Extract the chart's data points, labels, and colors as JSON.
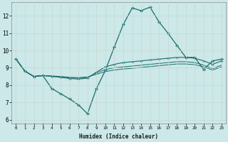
{
  "xlabel": "Humidex (Indice chaleur)",
  "background_color": "#cce8e8",
  "grid_color": "#aacccc",
  "line_color": "#1a6e6a",
  "xlim": [
    -0.5,
    23.5
  ],
  "ylim": [
    5.8,
    12.8
  ],
  "xticks": [
    0,
    1,
    2,
    3,
    4,
    5,
    6,
    7,
    8,
    9,
    10,
    11,
    12,
    13,
    14,
    15,
    16,
    17,
    18,
    19,
    20,
    21,
    22,
    23
  ],
  "yticks": [
    6,
    7,
    8,
    9,
    10,
    11,
    12
  ],
  "line1_y": [
    9.5,
    8.8,
    8.5,
    8.55,
    7.8,
    7.5,
    7.2,
    6.85,
    6.35,
    7.8,
    8.85,
    10.2,
    11.5,
    12.45,
    12.3,
    12.5,
    11.65,
    11.0,
    10.3,
    9.6,
    9.6,
    8.9,
    9.4,
    9.5
  ],
  "line2_y": [
    9.5,
    8.8,
    8.5,
    8.55,
    8.5,
    8.45,
    8.38,
    8.35,
    8.4,
    8.75,
    9.05,
    9.2,
    9.3,
    9.35,
    9.4,
    9.45,
    9.5,
    9.55,
    9.6,
    9.6,
    9.55,
    9.4,
    9.2,
    9.4
  ],
  "line3_y": [
    9.5,
    8.8,
    8.5,
    8.55,
    8.52,
    8.48,
    8.42,
    8.4,
    8.45,
    8.7,
    8.9,
    9.0,
    9.05,
    9.1,
    9.15,
    9.2,
    9.25,
    9.3,
    9.35,
    9.35,
    9.3,
    9.15,
    8.95,
    9.15
  ],
  "line4_y": [
    9.5,
    8.8,
    8.5,
    8.55,
    8.53,
    8.5,
    8.45,
    8.43,
    8.47,
    8.62,
    8.78,
    8.87,
    8.93,
    8.97,
    9.02,
    9.07,
    9.12,
    9.17,
    9.22,
    9.22,
    9.18,
    9.05,
    8.87,
    9.05
  ]
}
